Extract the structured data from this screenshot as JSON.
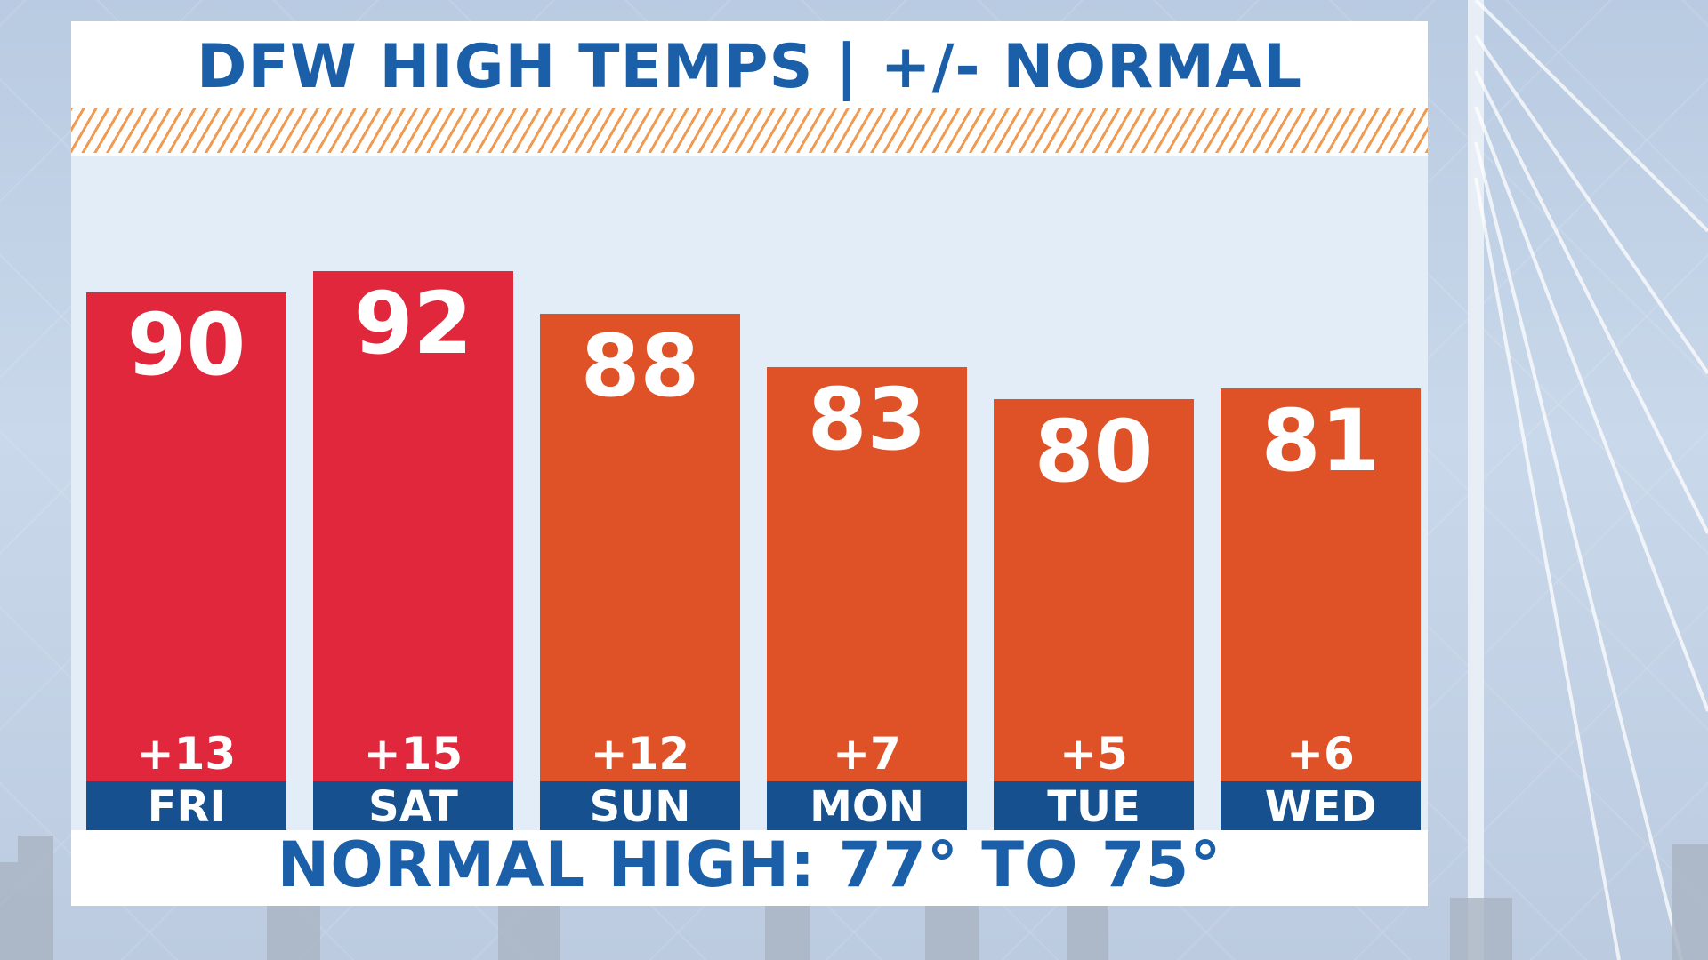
{
  "header": {
    "title": "DFW HIGH TEMPS | +/- NORMAL"
  },
  "footer": {
    "normal_high": "NORMAL HIGH: 77° TO 75°"
  },
  "colors": {
    "record_warm": "#e0273b",
    "above_normal": "#df5126",
    "day_band": "#17508f",
    "title_blue": "#1a5fa8"
  },
  "chart_data": {
    "type": "bar",
    "title": "DFW HIGH TEMPS | +/- NORMAL",
    "categories": [
      "FRI",
      "SAT",
      "SUN",
      "MON",
      "TUE",
      "WED"
    ],
    "values": [
      90,
      92,
      88,
      83,
      80,
      81
    ],
    "departures": [
      "+13",
      "+15",
      "+12",
      "+7",
      "+5",
      "+6"
    ],
    "bar_colors": [
      "#e0273b",
      "#e0273b",
      "#df5126",
      "#df5126",
      "#df5126",
      "#df5126"
    ],
    "annotation": "NORMAL HIGH: 77° TO 75°",
    "grid": false
  }
}
